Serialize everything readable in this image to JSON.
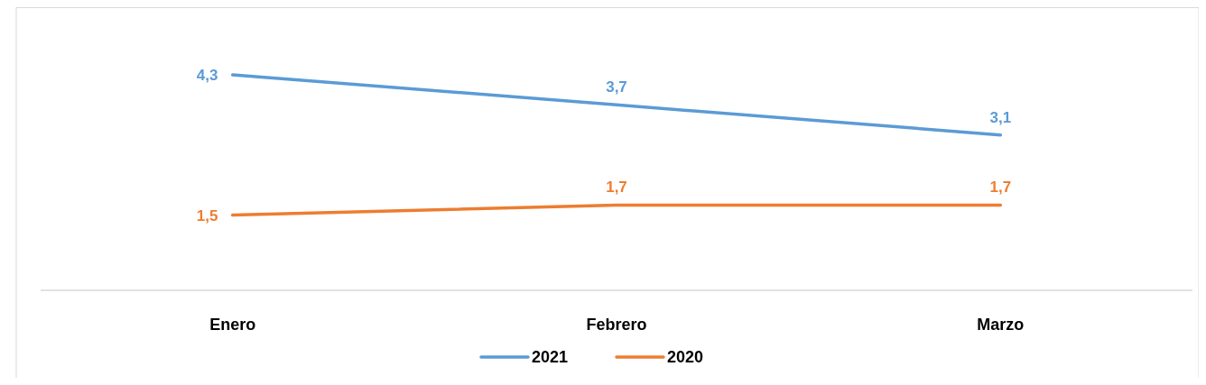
{
  "chart_data": {
    "type": "line",
    "categories": [
      "Enero",
      "Febrero",
      "Marzo"
    ],
    "series": [
      {
        "name": "2021",
        "color": "#5b9bd5",
        "values": [
          4.3,
          3.7,
          3.1
        ],
        "value_labels": [
          "4,3",
          "3,7",
          "3,1"
        ]
      },
      {
        "name": "2020",
        "color": "#ed7d31",
        "values": [
          1.5,
          1.7,
          1.7
        ],
        "value_labels": [
          "1,5",
          "1,7",
          "1,7"
        ]
      }
    ],
    "legend": "bottom",
    "marker": "none",
    "line_style": "solid"
  }
}
